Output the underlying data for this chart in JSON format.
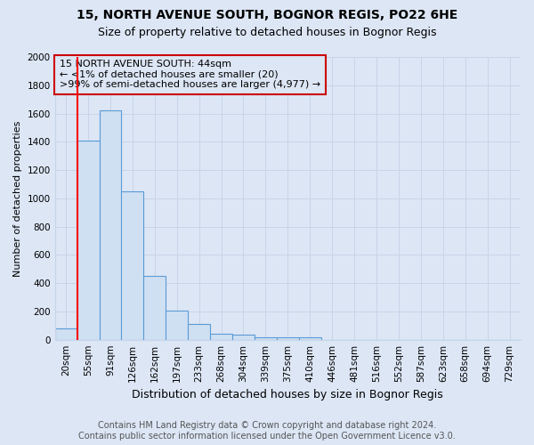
{
  "title1": "15, NORTH AVENUE SOUTH, BOGNOR REGIS, PO22 6HE",
  "title2": "Size of property relative to detached houses in Bognor Regis",
  "xlabel": "Distribution of detached houses by size in Bognor Regis",
  "ylabel": "Number of detached properties",
  "footnote1": "Contains HM Land Registry data © Crown copyright and database right 2024.",
  "footnote2": "Contains public sector information licensed under the Open Government Licence v3.0.",
  "annotation_line1": "15 NORTH AVENUE SOUTH: 44sqm",
  "annotation_line2": "← <1% of detached houses are smaller (20)",
  "annotation_line3": ">99% of semi-detached houses are larger (4,977) →",
  "categories": [
    "20sqm",
    "55sqm",
    "91sqm",
    "126sqm",
    "162sqm",
    "197sqm",
    "233sqm",
    "268sqm",
    "304sqm",
    "339sqm",
    "375sqm",
    "410sqm",
    "446sqm",
    "481sqm",
    "516sqm",
    "552sqm",
    "587sqm",
    "623sqm",
    "658sqm",
    "694sqm",
    "729sqm"
  ],
  "values": [
    80,
    1410,
    1620,
    1050,
    450,
    205,
    110,
    45,
    35,
    20,
    15,
    20,
    0,
    0,
    0,
    0,
    0,
    0,
    0,
    0,
    0
  ],
  "bar_color": "#cfe0f3",
  "bar_edge_color": "#5b9bd5",
  "ylim": [
    0,
    2000
  ],
  "yticks": [
    0,
    200,
    400,
    600,
    800,
    1000,
    1200,
    1400,
    1600,
    1800,
    2000
  ],
  "grid_color": "#c8d4e8",
  "annotation_box_color": "#cc0000",
  "title1_fontsize": 10,
  "title2_fontsize": 9,
  "xlabel_fontsize": 9,
  "ylabel_fontsize": 8,
  "footnote_fontsize": 7,
  "annotation_fontsize": 8,
  "tick_fontsize": 7.5,
  "background_color": "#dce6f5"
}
